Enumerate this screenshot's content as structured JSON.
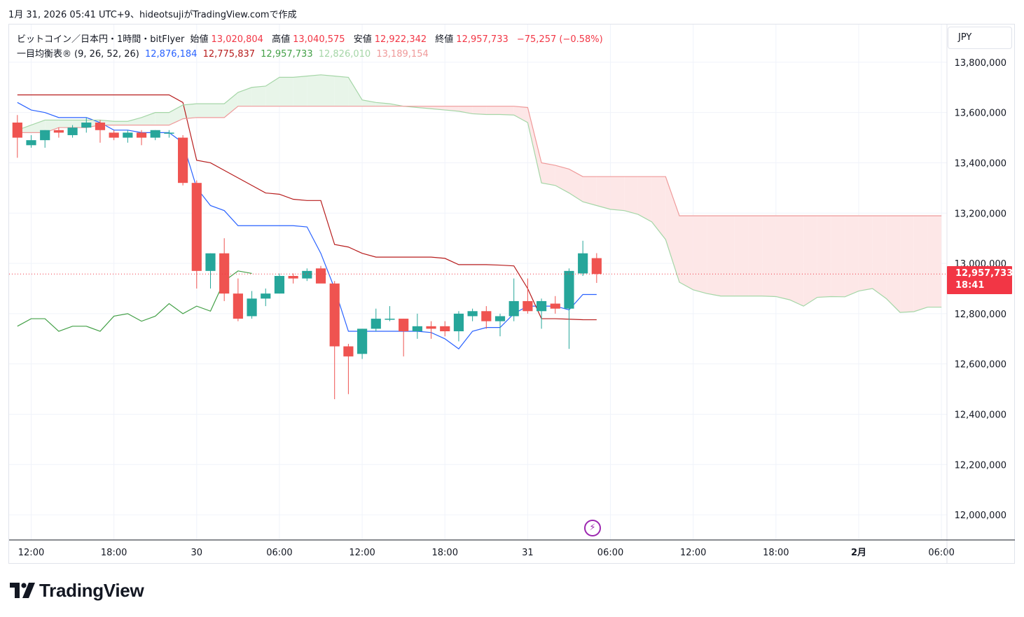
{
  "header": {
    "line": "1月 31, 2026 05:41 UTC+9、hideotsujiがTradingView.comで作成"
  },
  "legend": {
    "title": "ビットコイン／日本円・1時間・bitFlyer",
    "open_label": "始値",
    "open_value": "13,020,804",
    "high_label": "高値",
    "high_value": "13,040,575",
    "low_label": "安値",
    "low_value": "12,922,342",
    "close_label": "終値",
    "close_value": "12,957,733",
    "change": "−75,257 (−0.58%)",
    "ichimoku_title": "一目均衡表®",
    "ichimoku_params": "(9, 26, 52, 26)",
    "tenkan_value": "12,876,184",
    "kijun_value": "12,775,837",
    "chikou_value": "12,957,733",
    "spanA_value": "12,826,010",
    "spanB_value": "13,189,154"
  },
  "currency": "JPY",
  "last_price": {
    "value": "12,957,733",
    "countdown": "18:41"
  },
  "brand": {
    "name": "TradingView"
  },
  "colors": {
    "up": "#26a69a",
    "down": "#ef5350",
    "tenkan": "#2962ff",
    "kijun": "#b71c1c",
    "chikou": "#43a047",
    "spanA": "#a5d6a7",
    "spanB": "#ef9a9a",
    "cloud_bull": "#e8f5e9",
    "cloud_bear": "#fde7e7",
    "price_line": "#f23645"
  },
  "chart_data": {
    "type": "candlestick",
    "title": "ビットコイン／日本円・1時間・bitFlyer",
    "timeframe": "1時間",
    "currency": "JPY",
    "ylim": [
      11900000,
      13950000
    ],
    "y_ticks": [
      12000000,
      12200000,
      12400000,
      12600000,
      12800000,
      13000000,
      13200000,
      13400000,
      13600000,
      13800000
    ],
    "y_tick_labels": [
      "12,000,000",
      "12,200,000",
      "12,400,000",
      "12,600,000",
      "12,800,000",
      "13,000,000",
      "13,200,000",
      "13,400,000",
      "13,600,000",
      "13,800,000"
    ],
    "x_start": "1/29 11:00",
    "bar_interval_hours": 1,
    "x_range_bars": [
      -0.6,
      67.4
    ],
    "x_ticks": [
      {
        "bar": 1,
        "label": "12:00"
      },
      {
        "bar": 7,
        "label": "18:00"
      },
      {
        "bar": 13,
        "label": "30"
      },
      {
        "bar": 19,
        "label": "06:00"
      },
      {
        "bar": 25,
        "label": "12:00"
      },
      {
        "bar": 31,
        "label": "18:00"
      },
      {
        "bar": 37,
        "label": "31"
      },
      {
        "bar": 43,
        "label": "06:00"
      },
      {
        "bar": 49,
        "label": "12:00"
      },
      {
        "bar": 55,
        "label": "18:00"
      },
      {
        "bar": 61,
        "label": "2月"
      },
      {
        "bar": 67,
        "label": "06:00"
      }
    ],
    "candles": [
      {
        "o": 13560000,
        "h": 13590000,
        "l": 13420000,
        "c": 13500000
      },
      {
        "o": 13470000,
        "h": 13510000,
        "l": 13460000,
        "c": 13490000
      },
      {
        "o": 13490000,
        "h": 13530000,
        "l": 13460000,
        "c": 13530000
      },
      {
        "o": 13530000,
        "h": 13540000,
        "l": 13500000,
        "c": 13520000
      },
      {
        "o": 13510000,
        "h": 13550000,
        "l": 13500000,
        "c": 13540000
      },
      {
        "o": 13540000,
        "h": 13580000,
        "l": 13520000,
        "c": 13560000
      },
      {
        "o": 13560000,
        "h": 13570000,
        "l": 13480000,
        "c": 13530000
      },
      {
        "o": 13520000,
        "h": 13530000,
        "l": 13490000,
        "c": 13500000
      },
      {
        "o": 13500000,
        "h": 13530000,
        "l": 13480000,
        "c": 13520000
      },
      {
        "o": 13520000,
        "h": 13530000,
        "l": 13470000,
        "c": 13500000
      },
      {
        "o": 13500000,
        "h": 13530000,
        "l": 13490000,
        "c": 13530000
      },
      {
        "o": 13520000,
        "h": 13530000,
        "l": 13500000,
        "c": 13520000
      },
      {
        "o": 13500000,
        "h": 13510000,
        "l": 13310000,
        "c": 13320000
      },
      {
        "o": 13320000,
        "h": 13330000,
        "l": 12900000,
        "c": 12970000
      },
      {
        "o": 12970000,
        "h": 13040000,
        "l": 12900000,
        "c": 13040000
      },
      {
        "o": 13040000,
        "h": 13100000,
        "l": 12850000,
        "c": 12880000
      },
      {
        "o": 12880000,
        "h": 12940000,
        "l": 12770000,
        "c": 12780000
      },
      {
        "o": 12790000,
        "h": 12890000,
        "l": 12780000,
        "c": 12860000
      },
      {
        "o": 12860000,
        "h": 12900000,
        "l": 12830000,
        "c": 12880000
      },
      {
        "o": 12880000,
        "h": 12960000,
        "l": 12880000,
        "c": 12950000
      },
      {
        "o": 12950000,
        "h": 12960000,
        "l": 12920000,
        "c": 12940000
      },
      {
        "o": 12940000,
        "h": 12980000,
        "l": 12930000,
        "c": 12970000
      },
      {
        "o": 12980000,
        "h": 12990000,
        "l": 12930000,
        "c": 12920000
      },
      {
        "o": 12920000,
        "h": 12930000,
        "l": 12460000,
        "c": 12670000
      },
      {
        "o": 12670000,
        "h": 12680000,
        "l": 12480000,
        "c": 12630000
      },
      {
        "o": 12640000,
        "h": 12740000,
        "l": 12620000,
        "c": 12740000
      },
      {
        "o": 12740000,
        "h": 12820000,
        "l": 12730000,
        "c": 12780000
      },
      {
        "o": 12780000,
        "h": 12830000,
        "l": 12770000,
        "c": 12780000
      },
      {
        "o": 12780000,
        "h": 12780000,
        "l": 12630000,
        "c": 12730000
      },
      {
        "o": 12730000,
        "h": 12800000,
        "l": 12700000,
        "c": 12750000
      },
      {
        "o": 12750000,
        "h": 12770000,
        "l": 12700000,
        "c": 12740000
      },
      {
        "o": 12750000,
        "h": 12770000,
        "l": 12710000,
        "c": 12730000
      },
      {
        "o": 12730000,
        "h": 12810000,
        "l": 12690000,
        "c": 12800000
      },
      {
        "o": 12790000,
        "h": 12820000,
        "l": 12770000,
        "c": 12810000
      },
      {
        "o": 12810000,
        "h": 12830000,
        "l": 12740000,
        "c": 12770000
      },
      {
        "o": 12770000,
        "h": 12800000,
        "l": 12710000,
        "c": 12790000
      },
      {
        "o": 12790000,
        "h": 12940000,
        "l": 12770000,
        "c": 12850000
      },
      {
        "o": 12850000,
        "h": 12940000,
        "l": 12800000,
        "c": 12810000
      },
      {
        "o": 12810000,
        "h": 12860000,
        "l": 12740000,
        "c": 12850000
      },
      {
        "o": 12840000,
        "h": 12870000,
        "l": 12800000,
        "c": 12820000
      },
      {
        "o": 12820000,
        "h": 12980000,
        "l": 12660000,
        "c": 12970000
      },
      {
        "o": 12960000,
        "h": 13090000,
        "l": 12950000,
        "c": 13040000
      },
      {
        "o": 13020804,
        "h": 13040575,
        "l": 12922342,
        "c": 12957733
      }
    ],
    "series": [
      {
        "name": "12,876,184",
        "role": "tenkan",
        "start_bar": 0,
        "values": [
          13640000,
          13610000,
          13600000,
          13580000,
          13580000,
          13580000,
          13560000,
          13530000,
          13530000,
          13520000,
          13520000,
          13520000,
          13480000,
          13300000,
          13230000,
          13210000,
          13150000,
          13150000,
          13150000,
          13150000,
          13150000,
          13145000,
          13040000,
          12900000,
          12730000,
          12730000,
          12730000,
          12730000,
          12730000,
          12730000,
          12725000,
          12700000,
          12660000,
          12730000,
          12745000,
          12745000,
          12800000,
          12830000,
          12830000,
          12830000,
          12815000,
          12876184,
          12876184
        ]
      },
      {
        "name": "12,775,837",
        "role": "kijun",
        "start_bar": 0,
        "values": [
          13670000,
          13670000,
          13670000,
          13670000,
          13670000,
          13670000,
          13670000,
          13670000,
          13670000,
          13670000,
          13670000,
          13670000,
          13640000,
          13410000,
          13400000,
          13370000,
          13340000,
          13310000,
          13280000,
          13275000,
          13255000,
          13250000,
          13250000,
          13075000,
          13065000,
          13040000,
          13025000,
          13025000,
          13025000,
          13025000,
          13025000,
          13020000,
          12995000,
          12995000,
          12995000,
          12993000,
          12990000,
          12900000,
          12780000,
          12780000,
          12778000,
          12776000,
          12775837
        ]
      },
      {
        "name": "12,957,733",
        "role": "chikou",
        "start_bar": 0,
        "values": [
          12750000,
          12780000,
          12780000,
          12730000,
          12750000,
          12750000,
          12730000,
          12790000,
          12800000,
          12770000,
          12790000,
          12840000,
          12800000,
          12830000,
          12810000,
          12930000,
          12970000,
          12960000
        ]
      },
      {
        "name": "12,826,010",
        "role": "senkou_a",
        "start_bar": 0,
        "values": [
          13530000,
          13550000,
          13570000,
          13570000,
          13570000,
          13570000,
          13570000,
          13565000,
          13565000,
          13580000,
          13600000,
          13600000,
          13630000,
          13635000,
          13635000,
          13635000,
          13680000,
          13700000,
          13705000,
          13740000,
          13740000,
          13745000,
          13750000,
          13745000,
          13740000,
          13650000,
          13640000,
          13635000,
          13625000,
          13620000,
          13615000,
          13610000,
          13605000,
          13595000,
          13592000,
          13592000,
          13590000,
          13560000,
          13320000,
          13310000,
          13280000,
          13245000,
          13230000,
          13215000,
          13210000,
          13195000,
          13165000,
          13095000,
          12925000,
          12895000,
          12880000,
          12870000,
          12870000,
          12870000,
          12870000,
          12868000,
          12855000,
          12830000,
          12865000,
          12868000,
          12867000,
          12890000,
          12900000,
          12860000,
          12805000,
          12808000,
          12826010,
          12826010
        ]
      },
      {
        "name": "13,189,154",
        "role": "senkou_b",
        "start_bar": 0,
        "values": [
          13520000,
          13520000,
          13520000,
          13540000,
          13540000,
          13540000,
          13550000,
          13550000,
          13550000,
          13550000,
          13550000,
          13550000,
          13575000,
          13580000,
          13580000,
          13580000,
          13625000,
          13625000,
          13625000,
          13625000,
          13625000,
          13625000,
          13625000,
          13625000,
          13625000,
          13625000,
          13625000,
          13625000,
          13625000,
          13625000,
          13625000,
          13625000,
          13625000,
          13625000,
          13625000,
          13625000,
          13625000,
          13620000,
          13400000,
          13390000,
          13375000,
          13345000,
          13345000,
          13345000,
          13345000,
          13345000,
          13345000,
          13345000,
          13189154,
          13189154,
          13189154,
          13189154,
          13189154,
          13189154,
          13189154,
          13189154,
          13189154,
          13189154,
          13189154,
          13189154,
          13189154,
          13189154,
          13189154,
          13189154,
          13189154,
          13189154,
          13189154,
          13189154
        ]
      }
    ],
    "last_price": 12957733
  }
}
